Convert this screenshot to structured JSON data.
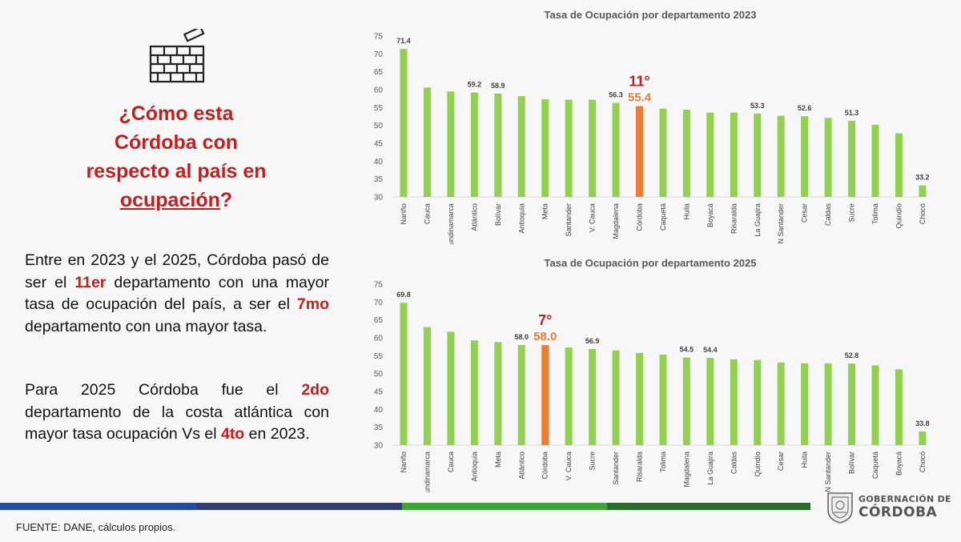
{
  "question": {
    "line1": "¿Cómo esta",
    "line2": "Córdoba con",
    "line3": "respecto al país en",
    "line4_underlined": "ocupación",
    "line4_mark": "?"
  },
  "paragraph1": {
    "t1": "Entre en 2023 y el 2025, Córdoba pasó de ser el ",
    "h1": "11er",
    "t2": " departamento con una mayor tasa de ocupación del país, a ser el ",
    "h2": "7mo",
    "t3": " departamento con una mayor tasa."
  },
  "paragraph2": {
    "t1": "Para 2025 Córdoba fue el ",
    "h1": "2do",
    "t2": " departamento de la costa atlántica con mayor tasa ocupación Vs el ",
    "h2": "4to",
    "t3": " en 2023."
  },
  "source": "FUENTE: DANE, cálculos propios.",
  "logo": {
    "line1": "GOBERNACIÓN DE",
    "line2": "CÓRDOBA"
  },
  "colors": {
    "bar": "#92d050",
    "highlight": "#ed7d31",
    "title_red": "#c41f1f",
    "band": [
      "#1f4ea1",
      "#323f6e",
      "#3fa535",
      "#2a6e2c"
    ]
  },
  "chart_data": [
    {
      "type": "bar",
      "title": "Tasa de Ocupación por departamento 2023",
      "ylim": [
        30,
        75
      ],
      "yticks": [
        30,
        35,
        40,
        45,
        50,
        55,
        60,
        65,
        70,
        75
      ],
      "categories": [
        "Nariño",
        "Cauca",
        "Cundinamarca",
        "Atlántico",
        "Bolívar",
        "Antioquia",
        "Meta",
        "Santander",
        "V. Cauca",
        "Magdalena",
        "Córdoba",
        "Caquetá",
        "Huila",
        "Boyacá",
        "Risaralda",
        "La Guajira",
        "N Santander",
        "Cesar",
        "Caldas",
        "Sucre",
        "Tolima",
        "Quindío",
        "Chocó"
      ],
      "values": [
        71.4,
        60.6,
        59.5,
        59.2,
        58.9,
        58.2,
        57.3,
        57.2,
        57.2,
        56.3,
        55.4,
        54.7,
        54.4,
        53.6,
        53.6,
        53.3,
        52.7,
        52.6,
        52.1,
        51.3,
        50.2,
        47.8,
        33.2
      ],
      "value_labels": {
        "Nariño": "71.4",
        "Atlántico": "59.2",
        "Bolívar": "58.9",
        "Magdalena": "56.3",
        "Córdoba": "55.4",
        "La Guajira": "53.3",
        "Cesar": "52.6",
        "Sucre": "51.3",
        "Chocó": "33.2"
      },
      "highlight": "Córdoba",
      "rank_label": "11°"
    },
    {
      "type": "bar",
      "title": "Tasa de Ocupación por departamento 2025",
      "ylim": [
        30,
        75
      ],
      "yticks": [
        30,
        35,
        40,
        45,
        50,
        55,
        60,
        65,
        70,
        75
      ],
      "categories": [
        "Nariño",
        "Cundinamarca",
        "Cauca",
        "Antioquia",
        "Meta",
        "Atlántico",
        "Córdoba",
        "V. Cauca",
        "Sucre",
        "Santander",
        "Risaralda",
        "Tolima",
        "Magdalena",
        "La Guajira",
        "Caldas",
        "Quindío",
        "Cesar",
        "Huila",
        "N Santander",
        "Bolívar",
        "Caquetá",
        "Boyacá",
        "Chocó"
      ],
      "values": [
        69.8,
        63.0,
        61.7,
        59.3,
        58.8,
        58.0,
        58.0,
        57.3,
        56.9,
        56.5,
        55.8,
        55.3,
        54.5,
        54.4,
        54.0,
        53.8,
        53.1,
        52.9,
        52.9,
        52.8,
        52.3,
        51.2,
        33.8
      ],
      "value_labels": {
        "Nariño": "69.8",
        "Atlántico": "58.0",
        "Córdoba": "58.0",
        "Sucre": "56.9",
        "Magdalena": "54.5",
        "La Guajira": "54.4",
        "Bolívar": "52.8",
        "Chocó": "33.8"
      },
      "highlight": "Córdoba",
      "rank_label": "7°"
    }
  ]
}
